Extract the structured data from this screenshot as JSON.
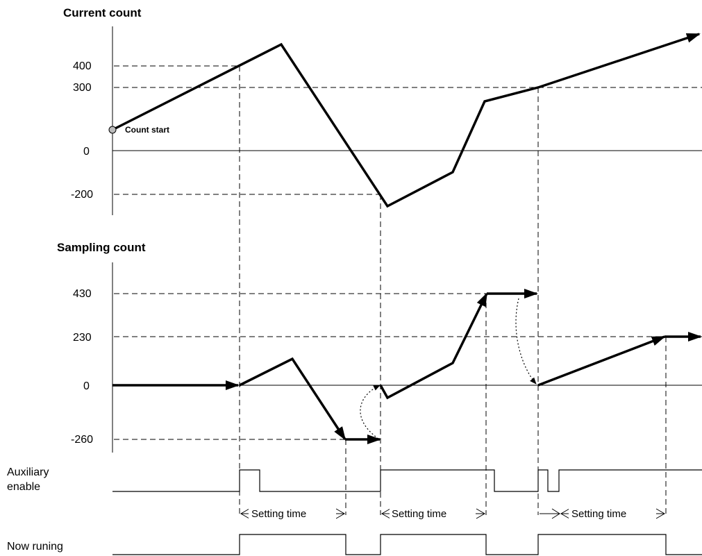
{
  "current_count": {
    "title": "Current count",
    "ticks": [
      "400",
      "300",
      "0",
      "-200"
    ],
    "start_label": "Count start"
  },
  "sampling_count": {
    "title": "Sampling count",
    "ticks": [
      "430",
      "230",
      "0",
      "-260"
    ]
  },
  "signals": {
    "aux_line1": "Auxiliary",
    "aux_line2": "enable",
    "now_running": "Now runing"
  },
  "setting_time": [
    "Setting time",
    "Setting time",
    "Setting time"
  ]
}
